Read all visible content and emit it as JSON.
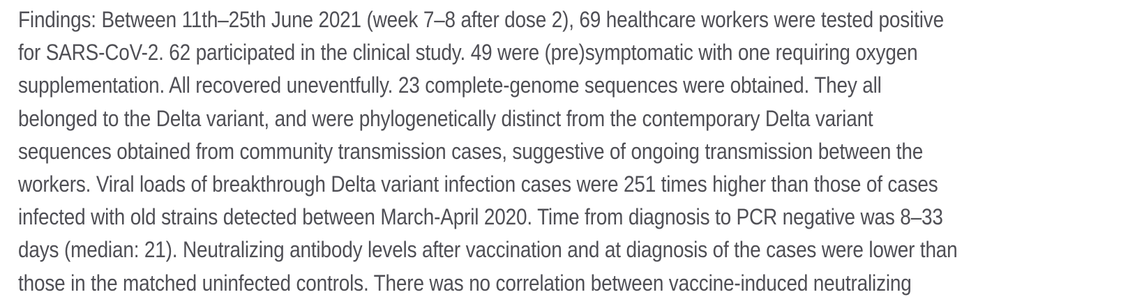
{
  "colors": {
    "text": "#4f4f55",
    "background": "#ffffff"
  },
  "paragraph": {
    "section_label": "Findings:",
    "full_text": "Findings: Between 11th–25th June 2021 (week 7–8 after dose 2), 69 healthcare workers were tested positive for SARS-CoV-2. 62 participated in the clinical study. 49 were (pre)symptomatic with one requiring oxygen supplementation. All recovered uneventfully. 23 complete-genome sequences were obtained. They all belonged to the Delta variant, and were phylogenetically distinct from the contemporary Delta variant sequences obtained from community transmission cases, suggestive of ongoing transmission between the workers. Viral loads of breakthrough Delta variant infection cases were 251 times higher than those of cases infected with old strains detected between March-April 2020. Time from diagnosis to PCR negative was 8–33 days (median: 21). Neutralizing antibody levels after vaccination and at diagnosis of the cases were lower than those in the matched uninfected controls. There was no correlation between vaccine-induced neutralizing",
    "lines": [
      "Findings: Between 11th–25th June 2021 (week 7–8 after dose 2), 69 healthcare workers were tested positive",
      "for SARS-CoV-2. 62 participated in the clinical study. 49 were (pre)symptomatic with one requiring oxygen",
      "supplementation. All recovered uneventfully. 23 complete-genome sequences were obtained. They all",
      "belonged to the Delta variant, and were phylogenetically distinct from the contemporary Delta variant",
      "sequences obtained from community transmission cases, suggestive of ongoing transmission between the",
      "workers. Viral loads of breakthrough Delta variant infection cases were 251 times higher than those of cases",
      "infected with old strains detected between March-April 2020. Time from diagnosis to PCR negative was 8–33",
      "days (median: 21). Neutralizing antibody levels after vaccination and at diagnosis of the cases were lower than",
      "those in the matched uninfected controls. There was no correlation between vaccine-induced neutralizing"
    ]
  }
}
